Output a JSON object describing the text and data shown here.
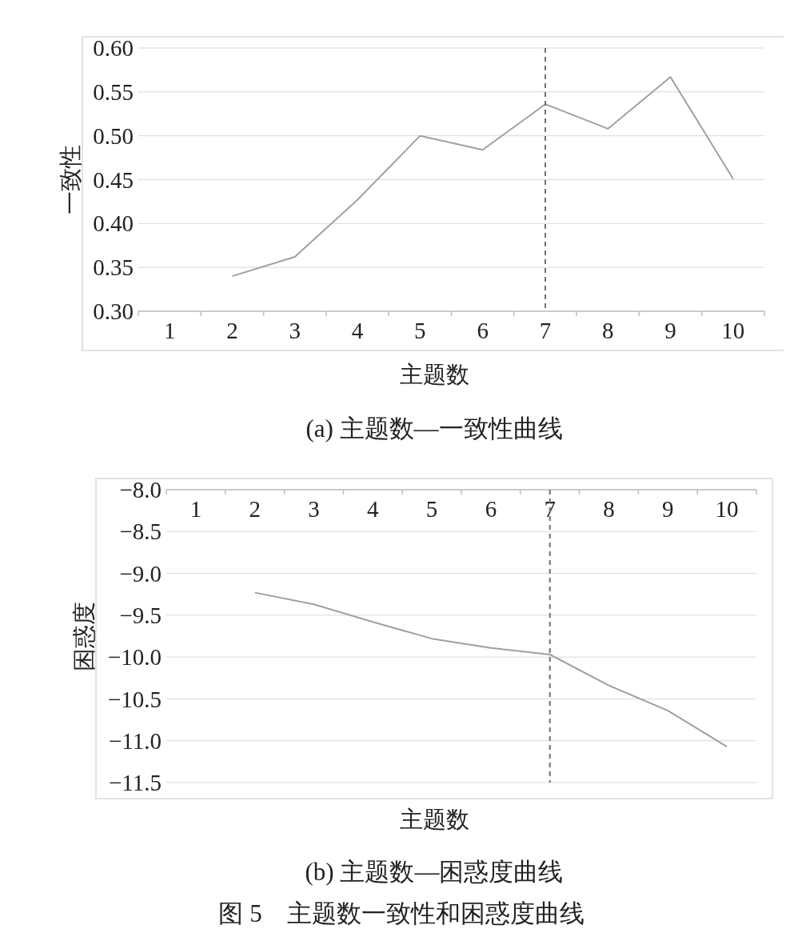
{
  "chart_data": [
    {
      "type": "line",
      "title": "(a) 主题数—一致性曲线",
      "xlabel": "主题数",
      "ylabel": "一致性",
      "categories": [
        "1",
        "2",
        "3",
        "4",
        "5",
        "6",
        "7",
        "8",
        "9",
        "10"
      ],
      "series": [
        {
          "color": "#a0a0a0",
          "values": [
            null,
            0.34,
            0.362,
            0.427,
            0.5,
            0.484,
            0.536,
            0.508,
            0.567,
            0.451
          ]
        }
      ],
      "ylim": [
        0.3,
        0.6
      ],
      "yticks": [
        {
          "value": 0.3,
          "label": "0.30"
        },
        0.35,
        {
          "value": 0.4,
          "label": "0.40"
        },
        0.45,
        {
          "value": 0.5,
          "label": "0.50"
        },
        0.55,
        {
          "value": 0.6,
          "label": "0.60"
        }
      ],
      "ref_lines": [
        {
          "axis": "x",
          "value": "7",
          "color": "#707070",
          "line_style": "dashed"
        }
      ],
      "grid": "y",
      "marker": "none",
      "line_style": "solid"
    },
    {
      "type": "line",
      "title": "(b) 主题数—困惑度曲线",
      "xlabel": "主题数",
      "ylabel": "困惑度",
      "categories": [
        "1",
        "2",
        "3",
        "4",
        "5",
        "6",
        "7",
        "8",
        "9",
        "10"
      ],
      "series": [
        {
          "color": "#a0a0a0",
          "values": [
            null,
            -9.23,
            -9.37,
            -9.58,
            -9.78,
            -9.89,
            -9.97,
            -10.34,
            -10.64,
            -11.07
          ]
        }
      ],
      "ylim": [
        -11.5,
        -8
      ],
      "yticks": [
        {
          "value": -11.5,
          "label": "−11.5"
        },
        {
          "value": -11,
          "label": "−11.0"
        },
        {
          "value": -10.5,
          "label": "−10.5"
        },
        {
          "value": -10,
          "label": "−10.0"
        },
        {
          "value": -9.5,
          "label": "−9.5"
        },
        {
          "value": -9,
          "label": "−9.0"
        },
        {
          "value": -8.5,
          "label": "−8.5"
        },
        {
          "value": -8,
          "label": "−8.0"
        }
      ],
      "ref_lines": [
        {
          "axis": "x",
          "value": "7",
          "color": "#707070",
          "line_style": "dashed"
        }
      ],
      "annotations": [
        "图 5　主题数一致性和困惑度曲线"
      ],
      "grid": "y",
      "marker": "none",
      "line_style": "solid"
    }
  ]
}
